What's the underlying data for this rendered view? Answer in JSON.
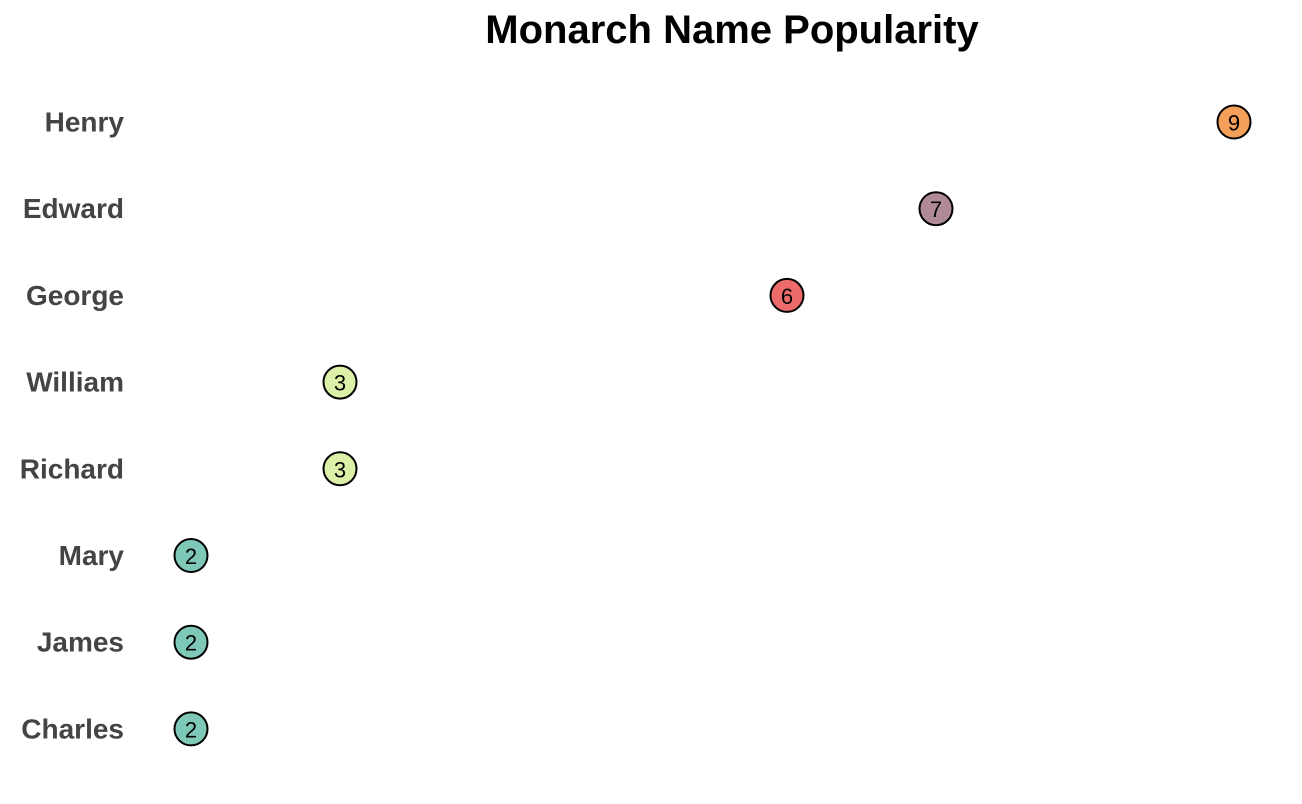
{
  "chart_data": {
    "type": "scatter",
    "title": "Monarch Name Popularity",
    "xlabel": "",
    "ylabel": "",
    "categories": [
      "Henry",
      "Edward",
      "George",
      "William",
      "Richard",
      "Mary",
      "James",
      "Charles"
    ],
    "values": [
      9,
      7,
      6,
      3,
      3,
      2,
      2,
      2
    ],
    "xlim": [
      2,
      9
    ],
    "grid": false,
    "legend": "none",
    "value_colors": {
      "9": "#F5A05A",
      "7": "#B08A95",
      "6": "#EE6B6B",
      "3": "#DCF0A8",
      "2": "#7DC8B6"
    }
  }
}
